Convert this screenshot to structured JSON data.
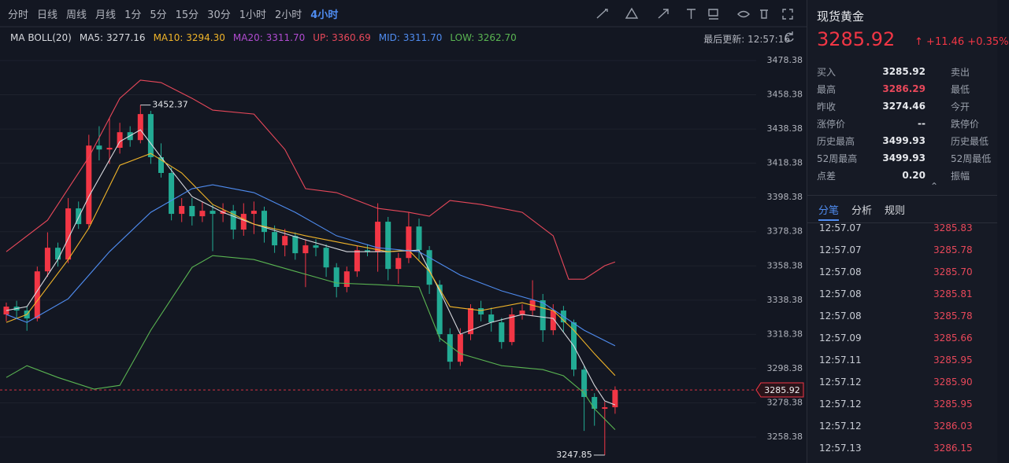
{
  "toolbar": {
    "periods": [
      "分时",
      "日线",
      "周线",
      "月线",
      "1分",
      "5分",
      "15分",
      "30分",
      "1小时",
      "2小时",
      "4小时"
    ],
    "active": "4小时",
    "last_update": "最后更新: 12:57:16"
  },
  "chart_data": {
    "type": "candlestick",
    "legend_title": "MA BOLL(20)",
    "up_color": "#f23645",
    "down_color": "#22ab94",
    "ylim": [
      3243.23,
      3485.27
    ],
    "yticks": [
      3478.38,
      3458.38,
      3438.38,
      3418.38,
      3398.38,
      3378.38,
      3358.38,
      3338.38,
      3318.38,
      3298.38,
      3278.38,
      3258.38
    ],
    "grid": true,
    "candles": [
      [
        3330.0,
        3337.0,
        3326.0,
        3334.6
      ],
      [
        3334.6,
        3338.0,
        3328.0,
        3332.3
      ],
      [
        3332.3,
        3335.0,
        3320.5,
        3327.7
      ],
      [
        3327.7,
        3358.0,
        3326.0,
        3355.2
      ],
      [
        3355.2,
        3378.0,
        3352.0,
        3369.0
      ],
      [
        3369.0,
        3372.0,
        3358.0,
        3362.1
      ],
      [
        3362.1,
        3398.0,
        3360.0,
        3392.0
      ],
      [
        3392.0,
        3396.0,
        3380.0,
        3382.8
      ],
      [
        3382.8,
        3435.0,
        3380.0,
        3428.7
      ],
      [
        3428.7,
        3440.0,
        3420.0,
        3426.4
      ],
      [
        3426.4,
        3445.0,
        3418.0,
        3427.4
      ],
      [
        3427.4,
        3442.0,
        3424.0,
        3436.5
      ],
      [
        3436.5,
        3440.0,
        3428.0,
        3431.9
      ],
      [
        3431.9,
        3452.37,
        3430.0,
        3447.1
      ],
      [
        3447.1,
        3449.0,
        3418.0,
        3421.9
      ],
      [
        3421.9,
        3430.0,
        3410.0,
        3412.7
      ],
      [
        3412.7,
        3416.0,
        3385.0,
        3388.8
      ],
      [
        3388.8,
        3398.0,
        3384.0,
        3393.4
      ],
      [
        3393.4,
        3398.0,
        3382.0,
        3387.4
      ],
      [
        3387.4,
        3396.0,
        3384.0,
        3390.6
      ],
      [
        3390.6,
        3394.0,
        3367.0,
        3388.8
      ],
      [
        3388.8,
        3395.0,
        3384.0,
        3390.6
      ],
      [
        3390.6,
        3394.0,
        3374.0,
        3379.6
      ],
      [
        3379.6,
        3395.0,
        3376.0,
        3388.8
      ],
      [
        3388.8,
        3396.0,
        3377.0,
        3390.6
      ],
      [
        3390.6,
        3393.0,
        3372.0,
        3378.2
      ],
      [
        3378.2,
        3382.0,
        3366.0,
        3370.4
      ],
      [
        3370.4,
        3380.0,
        3364.0,
        3375.9
      ],
      [
        3375.9,
        3378.0,
        3362.0,
        3365.8
      ],
      [
        3365.8,
        3374.0,
        3346.0,
        3370.4
      ],
      [
        3370.4,
        3374.0,
        3364.0,
        3369.0
      ],
      [
        3369.0,
        3371.0,
        3352.0,
        3357.5
      ],
      [
        3357.5,
        3360.0,
        3340.0,
        3346.1
      ],
      [
        3346.1,
        3358.0,
        3343.0,
        3355.2
      ],
      [
        3355.2,
        3370.0,
        3352.0,
        3367.6
      ],
      [
        3367.6,
        3371.0,
        3364.0,
        3366.5
      ],
      [
        3366.5,
        3395.0,
        3355.0,
        3384.2
      ],
      [
        3384.2,
        3387.0,
        3350.0,
        3356.6
      ],
      [
        3356.6,
        3366.0,
        3348.0,
        3363.0
      ],
      [
        3363.0,
        3390.0,
        3360.0,
        3381.4
      ],
      [
        3381.4,
        3386.0,
        3362.0,
        3367.6
      ],
      [
        3367.6,
        3370.0,
        3342.0,
        3347.4
      ],
      [
        3347.4,
        3350.0,
        3314.0,
        3318.5
      ],
      [
        3318.5,
        3322.0,
        3298.0,
        3302.4
      ],
      [
        3302.4,
        3322.0,
        3300.0,
        3318.5
      ],
      [
        3318.5,
        3336.0,
        3315.0,
        3333.7
      ],
      [
        3333.7,
        3338.0,
        3326.0,
        3330.0
      ],
      [
        3330.0,
        3334.0,
        3320.0,
        3325.4
      ],
      [
        3325.4,
        3328.0,
        3310.0,
        3313.9
      ],
      [
        3313.9,
        3334.0,
        3312.0,
        3330.0
      ],
      [
        3330.0,
        3336.0,
        3327.0,
        3332.3
      ],
      [
        3332.3,
        3350.0,
        3329.0,
        3338.3
      ],
      [
        3338.3,
        3342.0,
        3314.0,
        3320.8
      ],
      [
        3320.8,
        3336.0,
        3318.0,
        3332.3
      ],
      [
        3332.3,
        3335.0,
        3320.0,
        3325.4
      ],
      [
        3325.4,
        3327.0,
        3294.0,
        3297.8
      ],
      [
        3297.8,
        3300.0,
        3262.0,
        3281.8
      ],
      [
        3281.8,
        3284.0,
        3265.0,
        3274.9
      ],
      [
        3274.9,
        3279.0,
        3247.85,
        3275.8
      ],
      [
        3275.8,
        3288.0,
        3272.0,
        3285.92
      ]
    ],
    "indicators": [
      {
        "name": "MA5:",
        "value": 3277.16,
        "color": "#d7d9de",
        "x": [
          0,
          2,
          5,
          8,
          11,
          13,
          15,
          18,
          21,
          24,
          29,
          33,
          37,
          40,
          42,
          44,
          47,
          50,
          53,
          55,
          57,
          58,
          59
        ],
        "values": [
          3332.3,
          3334.6,
          3362.1,
          3398.9,
          3431.0,
          3437.9,
          3421.9,
          3398.9,
          3389.7,
          3382.8,
          3373.6,
          3366.7,
          3366.7,
          3367.6,
          3343.8,
          3318.5,
          3325.4,
          3330.0,
          3327.7,
          3311.6,
          3288.6,
          3279.5,
          3277.16
        ]
      },
      {
        "name": "MA10:",
        "value": 3294.3,
        "value_label": "3294.30",
        "color": "#f0b429",
        "x": [
          0,
          2,
          6,
          8,
          11,
          14,
          17,
          20,
          24,
          29,
          33,
          37,
          39,
          41,
          43,
          46,
          50,
          53,
          55,
          57,
          59
        ],
        "values": [
          3325.4,
          3330.0,
          3362.1,
          3380.5,
          3417.2,
          3424.1,
          3412.7,
          3394.3,
          3382.8,
          3376.0,
          3371.3,
          3366.7,
          3367.6,
          3355.2,
          3334.6,
          3332.3,
          3336.9,
          3332.3,
          3320.8,
          3307.1,
          3294.3
        ]
      },
      {
        "name": "MA20:",
        "value": 3311.7,
        "value_label": "3311.70",
        "color": "#b04bd0"
      },
      {
        "name": "UP:",
        "value": 3360.69,
        "color": "#e8485a",
        "x": [
          0,
          4,
          8,
          11,
          13,
          15,
          18,
          20,
          24,
          27,
          29,
          32,
          36,
          39,
          41,
          43,
          46,
          50,
          53,
          54.5,
          56,
          58,
          59
        ],
        "values": [
          3366.7,
          3385.1,
          3421.9,
          3456.3,
          3466.9,
          3465.5,
          3456.3,
          3449.4,
          3447.1,
          3426.4,
          3403.5,
          3401.2,
          3392.0,
          3389.7,
          3387.4,
          3396.6,
          3394.3,
          3389.7,
          3376.0,
          3350.6,
          3350.6,
          3358.5,
          3360.69
        ]
      },
      {
        "name": "MID:",
        "value": 3311.7,
        "value_label": "3311.70",
        "color": "#4f8cf0",
        "x": [
          0,
          2,
          6,
          10,
          14,
          18,
          20,
          24,
          28,
          32,
          36,
          40,
          44,
          48,
          52,
          56,
          59
        ],
        "values": [
          3330.0,
          3325.4,
          3339.2,
          3366.7,
          3389.7,
          3403.5,
          3405.8,
          3401.2,
          3389.7,
          3376.0,
          3369.0,
          3366.7,
          3353.0,
          3343.8,
          3336.9,
          3320.8,
          3311.7
        ]
      },
      {
        "name": "LOW:",
        "value": 3262.7,
        "value_label": "3262.70",
        "color": "#5ab552",
        "x": [
          0,
          2,
          5,
          8.5,
          11,
          14,
          18,
          20,
          24,
          28,
          32,
          36,
          40,
          42,
          44,
          48,
          52,
          54,
          56,
          57,
          59
        ],
        "values": [
          3293.2,
          3300.1,
          3293.2,
          3286.4,
          3288.6,
          3320.8,
          3357.5,
          3364.4,
          3362.1,
          3355.2,
          3348.4,
          3347.4,
          3346.1,
          3316.2,
          3307.1,
          3300.1,
          3297.8,
          3294.2,
          3284.1,
          3274.9,
          3262.7
        ]
      }
    ]
  },
  "quote": {
    "name": "现货黄金",
    "price": "3285.92",
    "change": "+11.46",
    "pct": "+0.35%",
    "stats": [
      [
        "买入",
        "3285.92",
        "卖出"
      ],
      [
        "最高",
        "3286.29",
        "最低"
      ],
      [
        "昨收",
        "3274.46",
        "今开"
      ],
      [
        "涨停价",
        "--",
        "跌停价"
      ],
      [
        "历史最高",
        "3499.93",
        "历史最低"
      ],
      [
        "52周最高",
        "3499.93",
        "52周最低"
      ],
      [
        "点差",
        "0.20",
        "振幅"
      ]
    ],
    "tabs": [
      "分笔",
      "分析",
      "规则"
    ],
    "trades": [
      [
        "12:57.07",
        "3285.83"
      ],
      [
        "12:57.07",
        "3285.78"
      ],
      [
        "12:57.08",
        "3285.70"
      ],
      [
        "12:57.08",
        "3285.81"
      ],
      [
        "12:57.08",
        "3285.78"
      ],
      [
        "12:57.09",
        "3285.66"
      ],
      [
        "12:57.11",
        "3285.95"
      ],
      [
        "12:57.12",
        "3285.90"
      ],
      [
        "12:57.12",
        "3285.95"
      ],
      [
        "12:57.12",
        "3286.03"
      ],
      [
        "12:57.13",
        "3286.15"
      ]
    ]
  }
}
